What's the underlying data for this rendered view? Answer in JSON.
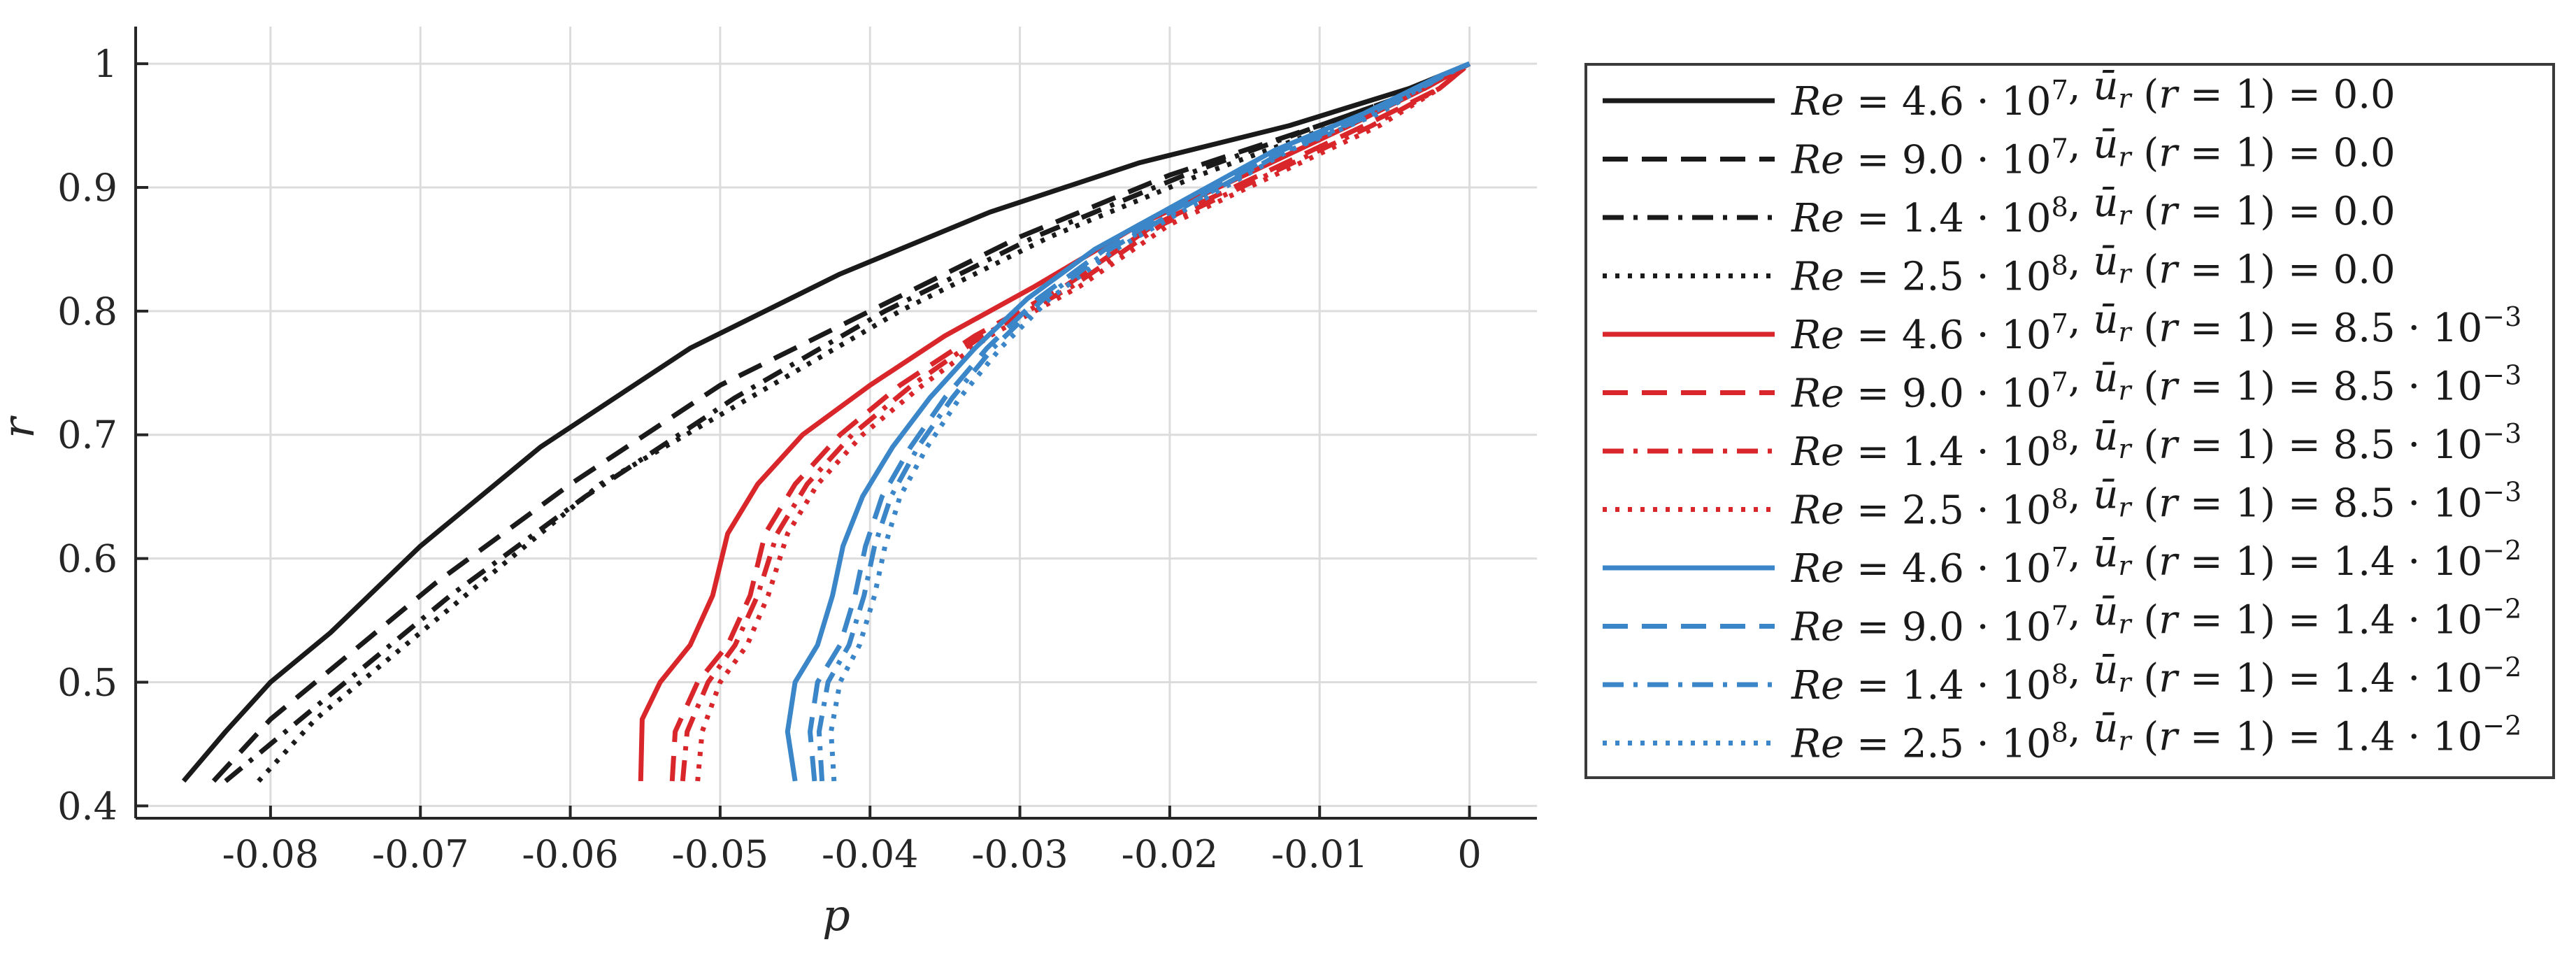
{
  "chart_data": {
    "type": "line",
    "xlabel": "p",
    "ylabel": "r",
    "xlim": [
      -0.089,
      0.0045
    ],
    "ylim": [
      0.39,
      1.03
    ],
    "xticks": [
      -0.08,
      -0.07,
      -0.06,
      -0.05,
      -0.04,
      -0.03,
      -0.02,
      -0.01,
      0
    ],
    "xtick_labels": [
      "-0.08",
      "-0.07",
      "-0.06",
      "-0.05",
      "-0.04",
      "-0.03",
      "-0.02",
      "-0.01",
      "0"
    ],
    "yticks": [
      0.4,
      0.5,
      0.6,
      0.7,
      0.8,
      0.9,
      1.0
    ],
    "ytick_labels": [
      "0.4",
      "0.5",
      "0.6",
      "0.7",
      "0.8",
      "0.9",
      "1"
    ],
    "grid": true,
    "legend_position": "outside-right",
    "colors": {
      "black": "#1a1a1a",
      "red": "#d9262b",
      "blue": "#3a86c8"
    },
    "series": [
      {
        "name": "Re = 4.6 · 10^7, ū_r (r = 1) = 0.0",
        "legend": {
          "re_m": "4.6",
          "re_e": "7",
          "ur_m": "0.0",
          "ur_e": ""
        },
        "color": "black",
        "dash": "solid",
        "x": [
          -0.0858,
          -0.083,
          -0.08,
          -0.076,
          -0.07,
          -0.062,
          -0.052,
          -0.042,
          -0.032,
          -0.022,
          -0.012,
          -0.004,
          0.0
        ],
        "y": [
          0.42,
          0.46,
          0.5,
          0.54,
          0.61,
          0.69,
          0.77,
          0.83,
          0.88,
          0.92,
          0.95,
          0.98,
          1.0
        ]
      },
      {
        "name": "Re = 9.0 · 10^7, ū_r (r = 1) = 0.0",
        "legend": {
          "re_m": "9.0",
          "re_e": "7",
          "ur_m": "0.0",
          "ur_e": ""
        },
        "color": "black",
        "dash": "dash",
        "x": [
          -0.0838,
          -0.08,
          -0.075,
          -0.069,
          -0.06,
          -0.05,
          -0.04,
          -0.03,
          -0.02,
          -0.01,
          -0.003,
          0.0
        ],
        "y": [
          0.42,
          0.47,
          0.52,
          0.58,
          0.66,
          0.74,
          0.8,
          0.86,
          0.91,
          0.95,
          0.98,
          1.0
        ]
      },
      {
        "name": "Re = 1.4 · 10^8, ū_r (r = 1) = 0.0",
        "legend": {
          "re_m": "1.4",
          "re_e": "8",
          "ur_m": "0.0",
          "ur_e": ""
        },
        "color": "black",
        "dash": "dashdot",
        "x": [
          -0.083,
          -0.079,
          -0.074,
          -0.068,
          -0.059,
          -0.049,
          -0.039,
          -0.029,
          -0.019,
          -0.01,
          -0.003,
          0.0
        ],
        "y": [
          0.42,
          0.46,
          0.51,
          0.57,
          0.65,
          0.73,
          0.8,
          0.86,
          0.91,
          0.95,
          0.98,
          1.0
        ]
      },
      {
        "name": "Re = 2.5 · 10^8, ū_r (r = 1) = 0.0",
        "legend": {
          "re_m": "2.5",
          "re_e": "8",
          "ur_m": "0.0",
          "ur_e": ""
        },
        "color": "black",
        "dash": "dot",
        "x": [
          -0.0808,
          -0.077,
          -0.072,
          -0.066,
          -0.058,
          -0.048,
          -0.038,
          -0.028,
          -0.018,
          -0.009,
          -0.003,
          0.0
        ],
        "y": [
          0.42,
          0.47,
          0.52,
          0.58,
          0.66,
          0.73,
          0.8,
          0.86,
          0.91,
          0.95,
          0.98,
          1.0
        ]
      },
      {
        "name": "Re = 4.6 · 10^7, ū_r (r = 1) = 8.5 · 10^-3",
        "legend": {
          "re_m": "4.6",
          "re_e": "7",
          "ur_m": "8.5 · 10",
          "ur_e": "−3"
        },
        "color": "red",
        "dash": "solid",
        "x": [
          -0.0553,
          -0.0552,
          -0.054,
          -0.052,
          -0.0505,
          -0.0495,
          -0.0475,
          -0.0445,
          -0.04,
          -0.035,
          -0.029,
          -0.022,
          -0.015,
          -0.008,
          -0.003,
          0.0
        ],
        "y": [
          0.42,
          0.47,
          0.5,
          0.53,
          0.57,
          0.62,
          0.66,
          0.7,
          0.74,
          0.78,
          0.82,
          0.87,
          0.91,
          0.95,
          0.98,
          1.0
        ]
      },
      {
        "name": "Re = 9.0 · 10^7, ū_r (r = 1) = 8.5 · 10^-3",
        "legend": {
          "re_m": "9.0",
          "re_e": "7",
          "ur_m": "8.5 · 10",
          "ur_e": "−3"
        },
        "color": "red",
        "dash": "dash",
        "x": [
          -0.0532,
          -0.053,
          -0.0515,
          -0.0495,
          -0.048,
          -0.047,
          -0.045,
          -0.042,
          -0.038,
          -0.033,
          -0.027,
          -0.021,
          -0.014,
          -0.007,
          -0.002,
          0.0
        ],
        "y": [
          0.42,
          0.46,
          0.5,
          0.53,
          0.57,
          0.62,
          0.66,
          0.7,
          0.74,
          0.78,
          0.82,
          0.87,
          0.91,
          0.95,
          0.98,
          1.0
        ]
      },
      {
        "name": "Re = 1.4 · 10^8, ū_r (r = 1) = 8.5 · 10^-3",
        "legend": {
          "re_m": "1.4",
          "re_e": "8",
          "ur_m": "8.5 · 10",
          "ur_e": "−3"
        },
        "color": "red",
        "dash": "dashdot",
        "x": [
          -0.0525,
          -0.0522,
          -0.0508,
          -0.049,
          -0.0475,
          -0.0462,
          -0.0442,
          -0.0412,
          -0.0372,
          -0.0325,
          -0.0265,
          -0.0205,
          -0.0135,
          -0.0065,
          -0.002,
          0.0
        ],
        "y": [
          0.42,
          0.46,
          0.5,
          0.53,
          0.57,
          0.62,
          0.66,
          0.7,
          0.74,
          0.78,
          0.82,
          0.87,
          0.91,
          0.95,
          0.98,
          1.0
        ]
      },
      {
        "name": "Re = 2.5 · 10^8, ū_r (r = 1) = 8.5 · 10^-3",
        "legend": {
          "re_m": "2.5",
          "re_e": "8",
          "ur_m": "8.5 · 10",
          "ur_e": "−3"
        },
        "color": "red",
        "dash": "dot",
        "x": [
          -0.0515,
          -0.0512,
          -0.05,
          -0.0482,
          -0.0468,
          -0.0455,
          -0.0435,
          -0.0405,
          -0.0365,
          -0.032,
          -0.026,
          -0.02,
          -0.013,
          -0.006,
          -0.002,
          0.0
        ],
        "y": [
          0.42,
          0.46,
          0.5,
          0.53,
          0.57,
          0.62,
          0.66,
          0.7,
          0.74,
          0.78,
          0.82,
          0.87,
          0.91,
          0.95,
          0.98,
          1.0
        ]
      },
      {
        "name": "Re = 4.6 · 10^7, ū_r (r = 1) = 1.4 · 10^-2",
        "legend": {
          "re_m": "4.6",
          "re_e": "7",
          "ur_m": "1.4 · 10",
          "ur_e": "−2"
        },
        "color": "blue",
        "dash": "solid",
        "x": [
          -0.045,
          -0.0455,
          -0.045,
          -0.0435,
          -0.0425,
          -0.0418,
          -0.0405,
          -0.0385,
          -0.036,
          -0.033,
          -0.0295,
          -0.025,
          -0.019,
          -0.013,
          -0.007,
          -0.002,
          0.0
        ],
        "y": [
          0.42,
          0.46,
          0.5,
          0.53,
          0.57,
          0.61,
          0.65,
          0.69,
          0.73,
          0.77,
          0.81,
          0.85,
          0.89,
          0.93,
          0.96,
          0.99,
          1.0
        ]
      },
      {
        "name": "Re = 9.0 · 10^7, ū_r (r = 1) = 1.4 · 10^-2",
        "legend": {
          "re_m": "9.0",
          "re_e": "7",
          "ur_m": "1.4 · 10",
          "ur_e": "−2"
        },
        "color": "blue",
        "dash": "dash",
        "x": [
          -0.0437,
          -0.044,
          -0.0435,
          -0.042,
          -0.041,
          -0.0403,
          -0.0392,
          -0.0373,
          -0.035,
          -0.0322,
          -0.0288,
          -0.0243,
          -0.0185,
          -0.0125,
          -0.0065,
          -0.002,
          0.0
        ],
        "y": [
          0.42,
          0.46,
          0.5,
          0.53,
          0.57,
          0.61,
          0.65,
          0.69,
          0.73,
          0.77,
          0.81,
          0.85,
          0.89,
          0.93,
          0.96,
          0.99,
          1.0
        ]
      },
      {
        "name": "Re = 1.4 · 10^8, ū_r (r = 1) = 1.4 · 10^-2",
        "legend": {
          "re_m": "1.4",
          "re_e": "8",
          "ur_m": "1.4 · 10",
          "ur_e": "−2"
        },
        "color": "blue",
        "dash": "dashdot",
        "x": [
          -0.0432,
          -0.0434,
          -0.0428,
          -0.0414,
          -0.0404,
          -0.0397,
          -0.0386,
          -0.0368,
          -0.0345,
          -0.0318,
          -0.0284,
          -0.024,
          -0.0182,
          -0.0122,
          -0.0063,
          -0.0018,
          0.0
        ],
        "y": [
          0.42,
          0.46,
          0.5,
          0.53,
          0.57,
          0.61,
          0.65,
          0.69,
          0.73,
          0.77,
          0.81,
          0.85,
          0.89,
          0.93,
          0.96,
          0.99,
          1.0
        ]
      },
      {
        "name": "Re = 2.5 · 10^8, ū_r (r = 1) = 1.4 · 10^-2",
        "legend": {
          "re_m": "2.5",
          "re_e": "8",
          "ur_m": "1.4 · 10",
          "ur_e": "−2"
        },
        "color": "blue",
        "dash": "dot",
        "x": [
          -0.0424,
          -0.0426,
          -0.042,
          -0.0407,
          -0.0397,
          -0.039,
          -0.038,
          -0.0362,
          -0.034,
          -0.0313,
          -0.028,
          -0.0236,
          -0.0178,
          -0.012,
          -0.006,
          -0.0018,
          0.0
        ],
        "y": [
          0.42,
          0.46,
          0.5,
          0.53,
          0.57,
          0.61,
          0.65,
          0.69,
          0.73,
          0.77,
          0.81,
          0.85,
          0.89,
          0.93,
          0.96,
          0.99,
          1.0
        ]
      }
    ]
  }
}
